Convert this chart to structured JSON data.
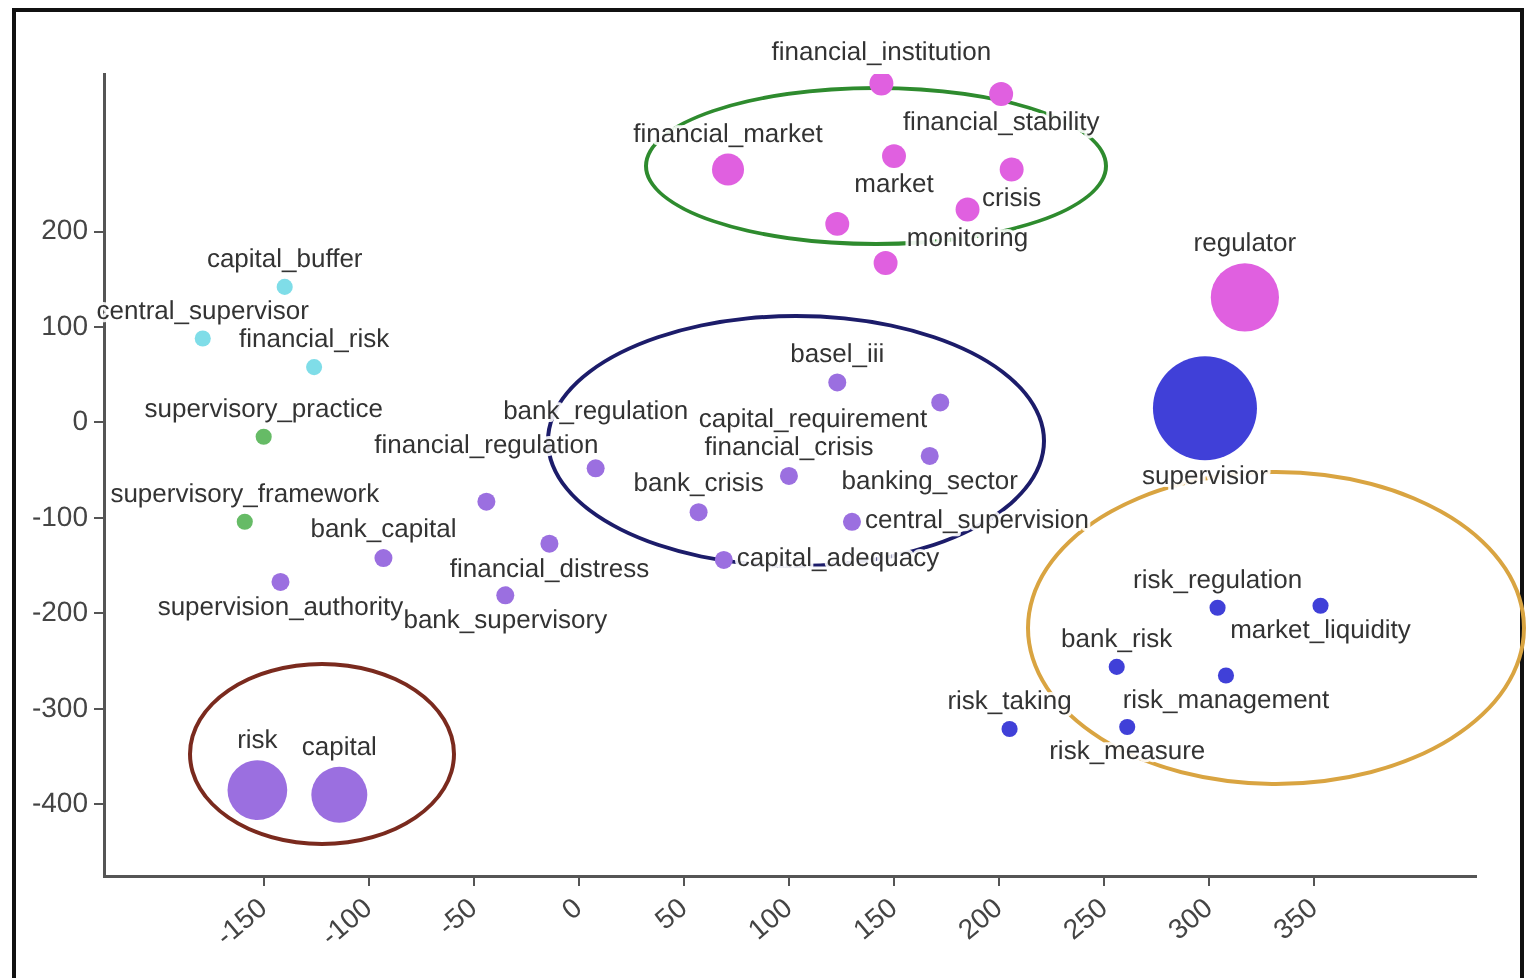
{
  "chart_data": {
    "type": "bubble",
    "xlim": [
      -226,
      427
    ],
    "ylim": [
      -475,
      365
    ],
    "xticks": [
      -150,
      -100,
      -50,
      0,
      50,
      100,
      150,
      200,
      250,
      300,
      350
    ],
    "yticks": [
      -400,
      -300,
      -200,
      -100,
      0,
      100,
      200
    ],
    "series": [
      {
        "color": "#7fdde8",
        "x": [
          -179,
          -140,
          -126
        ],
        "values": [
          88,
          142,
          58
        ],
        "sizes": [
          0.024,
          0.024,
          0.024
        ],
        "value_labels": [
          "central_supervisor",
          "capital_buffer",
          "financial_risk"
        ]
      },
      {
        "color": "#66bb66",
        "x": [
          -150,
          -159
        ],
        "values": [
          -15,
          -104
        ],
        "sizes": [
          0.024,
          0.024
        ],
        "value_labels": [
          "supervisory_practice",
          "supervisory_framework"
        ]
      },
      {
        "color": "#9b6fe0",
        "x": [
          -142,
          -93,
          -44,
          -35,
          -14,
          8,
          57,
          69,
          100,
          123,
          172,
          167,
          130,
          -153,
          -114
        ],
        "values": [
          -167,
          -142,
          -83,
          -181,
          -127,
          -48,
          -94,
          -144,
          -56,
          42,
          21,
          -35,
          -104,
          -385,
          -390
        ],
        "sizes": [
          0.03,
          0.03,
          0.03,
          0.03,
          0.03,
          0.03,
          0.03,
          0.03,
          0.03,
          0.03,
          0.03,
          0.03,
          0.03,
          0.33,
          0.29
        ],
        "value_labels": [
          "supervision_authority",
          "bank_capital",
          "financial_regulation",
          "bank_supervisory",
          "financial_distress",
          "bank_regulation",
          "bank_crisis",
          "capital_adequacy",
          "financial_crisis",
          "basel_iii",
          "capital_requirement",
          "banking_sector",
          "central_supervision",
          "risk",
          "capital"
        ]
      },
      {
        "color": "#e060e0",
        "x": [
          71,
          144,
          201,
          150,
          206,
          185,
          123,
          146,
          317
        ],
        "values": [
          265,
          355,
          344,
          279,
          265,
          223,
          208,
          167,
          131
        ],
        "sizes": [
          0.095,
          0.053,
          0.053,
          0.053,
          0.053,
          0.053,
          0.053,
          0.053,
          0.43
        ],
        "value_labels": [
          "financial_market",
          "financial_institution",
          "financial_stability",
          "market",
          "crisis",
          "monitoring",
          null,
          null,
          "regulator"
        ]
      },
      {
        "color": "#4040d8",
        "x": [
          298,
          304,
          353,
          256,
          308,
          205,
          261
        ],
        "values": [
          15,
          -194,
          -192,
          -256,
          -265,
          -321,
          -319
        ],
        "sizes": [
          1,
          0.024,
          0.024,
          0.024,
          0.024,
          0.024,
          0.024
        ],
        "value_labels": [
          "supervisior",
          "risk_regulation",
          "market_liquidity",
          "bank_risk",
          "risk_management",
          "risk_taking",
          "risk_measure"
        ]
      }
    ]
  }
}
